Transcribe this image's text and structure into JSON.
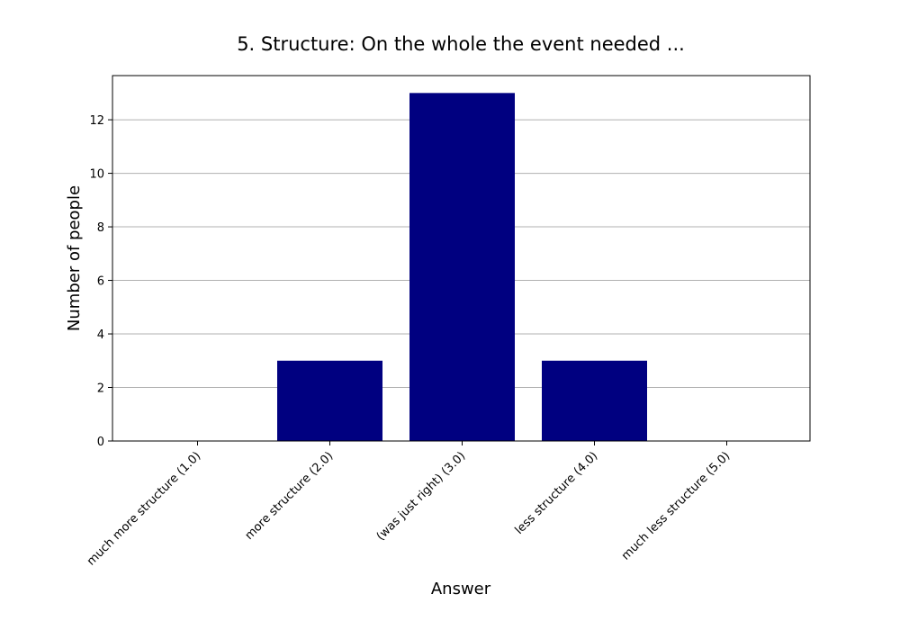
{
  "chart_data": {
    "type": "bar",
    "title": "5. Structure: On the whole the event needed ...",
    "xlabel": "Answer",
    "ylabel": "Number of people",
    "categories": [
      "much more structure (1.0)",
      "more structure (2.0)",
      "(was just right) (3.0)",
      "less structure (4.0)",
      "much less structure (5.0)"
    ],
    "values": [
      0,
      3,
      13,
      3,
      0
    ],
    "ylim": [
      0,
      13.65
    ],
    "yticks": [
      0,
      2,
      4,
      6,
      8,
      10,
      12
    ],
    "grid": "y",
    "bar_color": "#000080"
  }
}
